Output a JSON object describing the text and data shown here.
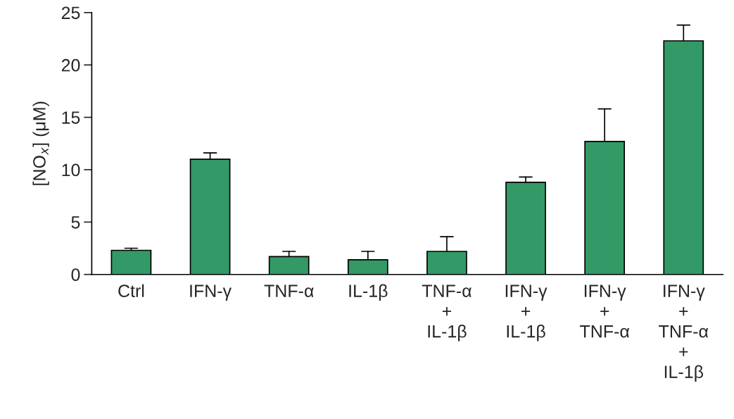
{
  "chart_data": {
    "type": "bar",
    "ylabel": "[NO$_{x}$] (μM)",
    "categories": [
      "Ctrl",
      "IFN-γ",
      "TNF-α",
      "IL-1β",
      "TNF-α\n+\nIL-1β",
      "IFN-γ\n+\nIL-1β",
      "IFN-γ\n+\nTNF-α",
      "IFN-γ\n+\nTNF-α\n+\nIL-1β"
    ],
    "values": [
      2.3,
      11.0,
      1.7,
      1.4,
      2.2,
      8.8,
      12.7,
      22.3
    ],
    "errors": [
      [
        2.3,
        2.5
      ],
      [
        11.0,
        11.6
      ],
      [
        1.7,
        2.2
      ],
      [
        1.4,
        2.2
      ],
      [
        2.2,
        3.6
      ],
      [
        8.8,
        9.3
      ],
      [
        12.7,
        15.8
      ],
      [
        22.3,
        23.8
      ]
    ],
    "color": "#339966",
    "ylim": [
      0,
      25
    ],
    "yticks": [
      0,
      5,
      10,
      15,
      20,
      25
    ],
    "grid": false,
    "legend": false
  }
}
